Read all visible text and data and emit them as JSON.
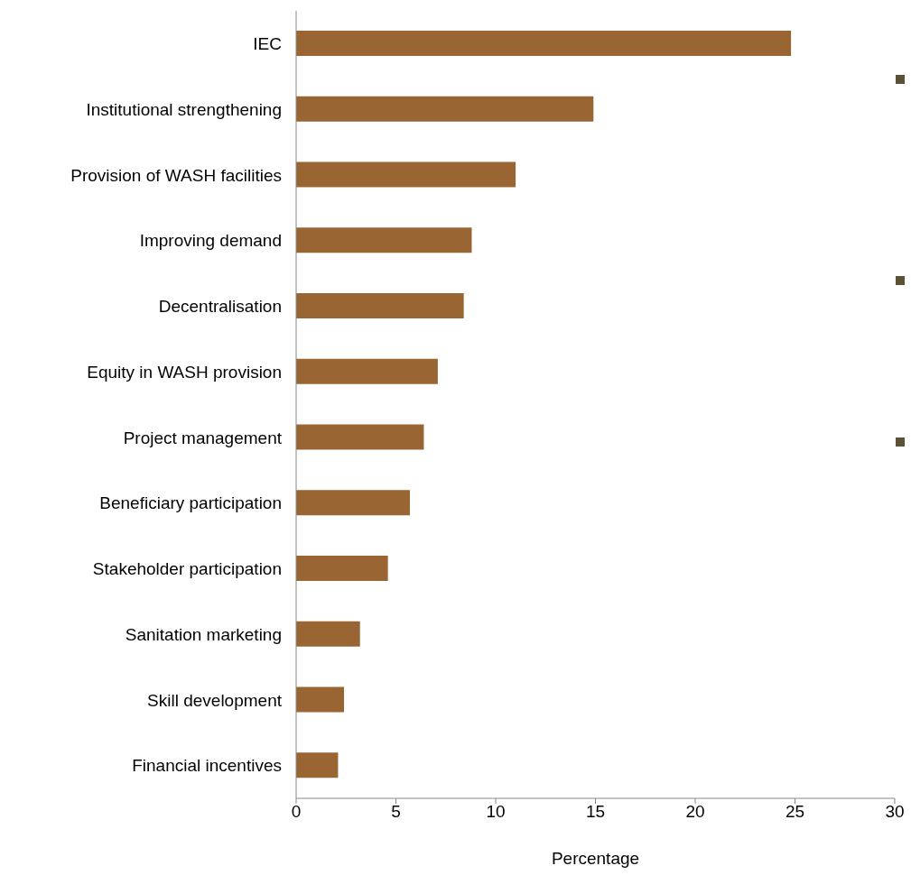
{
  "chart_data": {
    "type": "bar",
    "orientation": "horizontal",
    "xlabel": "Percentage",
    "categories": [
      "IEC",
      "Institutional strengthening",
      "Provision of WASH facilities",
      "Improving demand",
      "Decentralisation",
      "Equity in WASH provision",
      "Project management",
      "Beneficiary participation",
      "Stakeholder participation",
      "Sanitation marketing",
      "Skill development",
      "Financial incentives"
    ],
    "values": [
      24.8,
      14.9,
      11.0,
      8.8,
      8.4,
      7.1,
      6.4,
      5.7,
      4.6,
      3.2,
      2.4,
      2.1
    ],
    "color": "#996633",
    "xlim": [
      0,
      30
    ],
    "xticks": [
      0,
      5,
      10,
      15,
      20,
      25,
      30
    ],
    "grid": false,
    "legend": false
  }
}
